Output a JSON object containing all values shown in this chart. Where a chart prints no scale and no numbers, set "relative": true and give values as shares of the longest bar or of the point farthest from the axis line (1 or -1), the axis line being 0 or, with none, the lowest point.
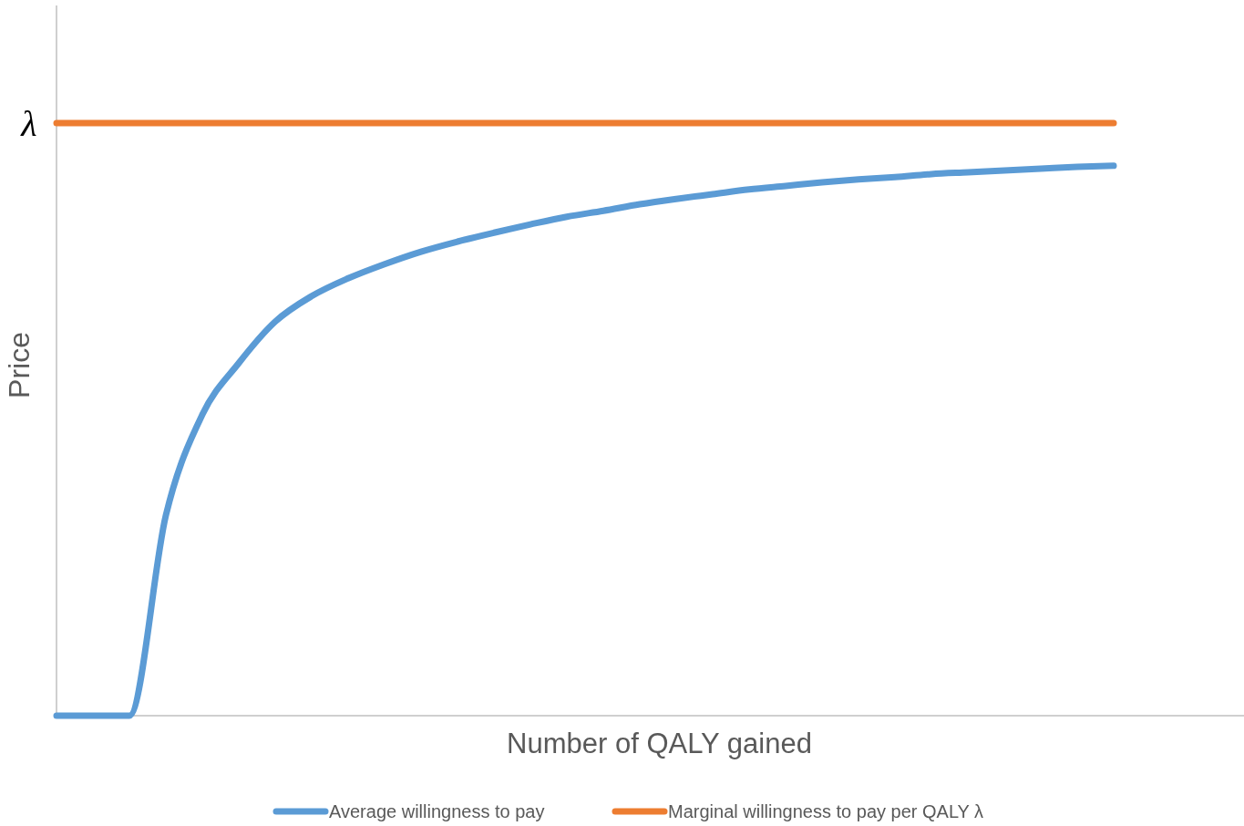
{
  "chart_data": {
    "type": "line",
    "relative": true,
    "xlabel": "Number of QALY gained",
    "ylabel": "Price",
    "annotations": [
      "λ"
    ],
    "legend": "bottom",
    "line_style": "solid",
    "categories": [
      null,
      null,
      null,
      null,
      null,
      null,
      null,
      null,
      null,
      null,
      null,
      null,
      null,
      null,
      null,
      null,
      null,
      null,
      null,
      null,
      null,
      null,
      null,
      null,
      null,
      null,
      null,
      null,
      null,
      null
    ],
    "series": [
      {
        "name": "Average willingness to pay",
        "color": "#5b9bd5",
        "values": [
          0,
          0,
          0,
          0.338,
          0.508,
          0.595,
          0.665,
          0.708,
          0.738,
          0.762,
          0.783,
          0.8,
          0.815,
          0.829,
          0.842,
          0.852,
          0.863,
          0.872,
          0.88,
          0.888,
          0.894,
          0.9,
          0.905,
          0.909,
          0.914,
          0.917,
          0.92,
          0.923,
          0.926,
          0.928
        ]
      },
      {
        "name": "Marginal willingness to pay per QALY λ",
        "color": "#ed7d31",
        "values": [
          1,
          1,
          1,
          1,
          1,
          1,
          1,
          1,
          1,
          1,
          1,
          1,
          1,
          1,
          1,
          1,
          1,
          1,
          1,
          1,
          1,
          1,
          1,
          1,
          1,
          1,
          1,
          1,
          1,
          1
        ]
      }
    ]
  }
}
